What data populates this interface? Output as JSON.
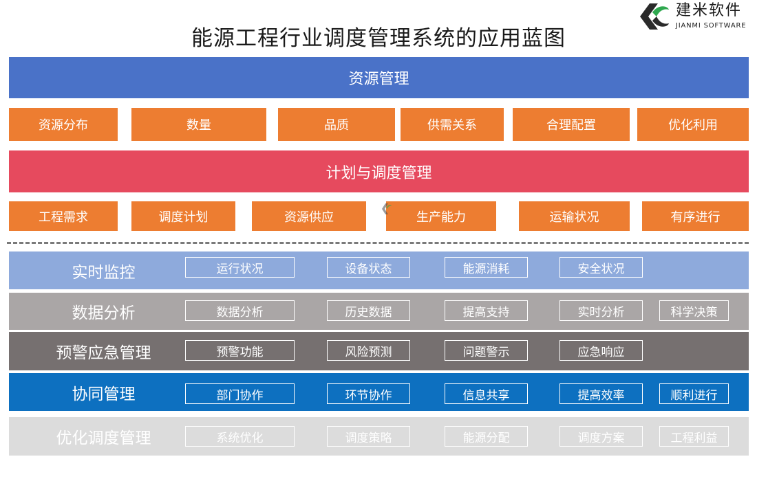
{
  "title": "能源工程行业调度管理系统的应用蓝图",
  "logo": {
    "name": "建米软件",
    "subtitle": "JIANMI SOFTWARE"
  },
  "resource": {
    "label": "资源管理",
    "items": [
      "资源分布",
      "数量",
      "品质",
      "供需关系",
      "合理配置",
      "优化利用"
    ]
  },
  "plan": {
    "label": "计划与调度管理",
    "items": [
      "工程需求",
      "调度计划",
      "资源供应",
      "生产能力",
      "运输状况",
      "有序进行"
    ]
  },
  "watermark": "建米软件",
  "rows": [
    {
      "label": "实时监控",
      "color": "#8eaadc",
      "items": [
        "运行状况",
        "设备状态",
        "能源消耗",
        "安全状况"
      ]
    },
    {
      "label": "数据分析",
      "color": "#aaa6a6",
      "items": [
        "数据分析",
        "历史数据",
        "提高支持",
        "实时分析",
        "科学决策"
      ]
    },
    {
      "label": "预警应急管理",
      "color": "#767070",
      "items": [
        "预警功能",
        "风险预测",
        "问题警示",
        "应急响应"
      ]
    },
    {
      "label": "协同管理",
      "color": "#0d70c0",
      "items": [
        "部门协作",
        "环节协作",
        "信息共享",
        "提高效率",
        "顺利进行"
      ]
    },
    {
      "label": "优化调度管理",
      "color": "#dcdcdc",
      "items": [
        "系统优化",
        "调度策略",
        "能源分配",
        "调度方案",
        "工程利益"
      ]
    }
  ],
  "colors": {
    "resource_bar": "#4a72c8",
    "plan_bar": "#e64a5e",
    "orange_box": "#ed7d31"
  }
}
